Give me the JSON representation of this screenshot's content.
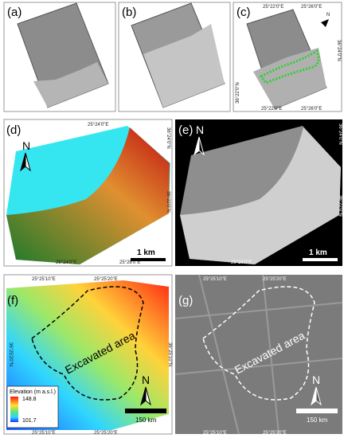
{
  "labels": [
    "(a)",
    "(b)",
    "(c)",
    "(d)",
    "(e)",
    "(f)",
    "(g)"
  ],
  "c": {
    "top": [
      "25°22'0\"E",
      "25°26'0\"E"
    ],
    "left": "36°22'0\"N",
    "right": "36°24'0\"N",
    "bottom": [
      "25°22'0\"E",
      "25°26'0\"E"
    ],
    "north": "N"
  },
  "d": {
    "top": "25°24'0\"E",
    "right": [
      "36°24'0\"N",
      "36°22'0\"N"
    ],
    "bottom": [
      "25°24'0\"E",
      "25°26'0\"E"
    ],
    "north": "N",
    "scale": "1 km"
  },
  "e": {
    "left": [
      "36°24'0\"N",
      "36°22'0\"N"
    ],
    "bottom": "25°24'0\"E",
    "north": "N",
    "scale": "1 km"
  },
  "f": {
    "top": [
      "25°25'10\"E",
      "25°25'20\"E"
    ],
    "left": "36°25'20\"N",
    "right": "36°25'10\"N",
    "bottom": [
      "25°25'10\"E",
      "25°25'20\"E"
    ],
    "annotation": "Excavated area",
    "legend": {
      "title": "Elevation (m a.s.l.)",
      "max": 148.8,
      "min": 101.7
    },
    "north": "N",
    "scale": "150 km"
  },
  "g": {
    "top": [
      "25°25'10\"E",
      "25°25'20\"E"
    ],
    "bottom": [
      "25°25'10\"E",
      "25°25'20\"E"
    ],
    "annotation": "Excavated area",
    "north": "N",
    "scale": "150 km"
  }
}
